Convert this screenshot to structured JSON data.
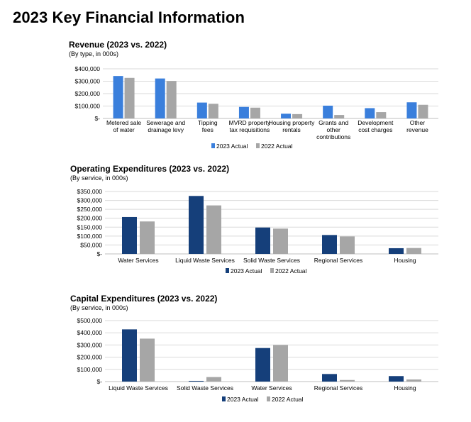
{
  "page_title": "2023 Key Financial Information",
  "colors": {
    "actual_2023_revenue": "#3a7fdc",
    "actual_2023_expense": "#153f7a",
    "actual_2022": "#a6a6a6",
    "grid": "#d9d9d9"
  },
  "chart_data": [
    {
      "type": "bar",
      "title": "Revenue (2023 vs. 2022)",
      "subtitle": "(By type, in 000s)",
      "categories": [
        [
          "Metered sale",
          "of water"
        ],
        [
          "Sewerage and",
          "drainage levy"
        ],
        [
          "Tipping",
          "fees"
        ],
        [
          "MVRD property",
          "tax requisitions"
        ],
        [
          "Housing property",
          "rentals"
        ],
        [
          "Grants and",
          "other",
          "contributions"
        ],
        [
          "Development",
          "cost charges"
        ],
        [
          "Other",
          "revenue"
        ]
      ],
      "series": [
        {
          "name": "2023 Actual",
          "values": [
            342000,
            322000,
            128000,
            93000,
            38000,
            103000,
            83000,
            130000
          ]
        },
        {
          "name": "2022 Actual",
          "values": [
            327000,
            302000,
            118000,
            87000,
            35000,
            28000,
            51000,
            110000
          ]
        }
      ],
      "ylim": [
        0,
        400000
      ],
      "yticks": [
        0,
        100000,
        200000,
        300000,
        400000
      ],
      "ytick_labels": [
        "$-",
        "$100,000",
        "$200,000",
        "$300,000",
        "$400,000"
      ],
      "legend": "bottom",
      "grid": true
    },
    {
      "type": "bar",
      "title": "Operating Expenditures (2023 vs. 2022)",
      "subtitle": "(By service, in 000s)",
      "categories": [
        [
          "Water Services"
        ],
        [
          "Liquid Waste Services"
        ],
        [
          "Solid Waste Services"
        ],
        [
          "Regional Services"
        ],
        [
          "Housing"
        ]
      ],
      "series": [
        {
          "name": "2023 Actual",
          "values": [
            207000,
            325000,
            148000,
            106000,
            32000
          ]
        },
        {
          "name": "2022 Actual",
          "values": [
            182000,
            272000,
            142000,
            98000,
            33000
          ]
        }
      ],
      "ylim": [
        0,
        350000
      ],
      "yticks": [
        0,
        50000,
        100000,
        150000,
        200000,
        250000,
        300000,
        350000
      ],
      "ytick_labels": [
        "$-",
        "$50,000",
        "$100,000",
        "$150,000",
        "$200,000",
        "$250,000",
        "$300,000",
        "$350,000"
      ],
      "legend": "bottom",
      "grid": true
    },
    {
      "type": "bar",
      "title": "Capital Expenditures (2023 vs. 2022)",
      "subtitle": "(By service, in 000s)",
      "categories": [
        [
          "Liquid Waste Services"
        ],
        [
          "Solid Waste Services"
        ],
        [
          "Water Services"
        ],
        [
          "Regional Services"
        ],
        [
          "Housing"
        ]
      ],
      "series": [
        {
          "name": "2023 Actual",
          "values": [
            428000,
            6000,
            275000,
            62000,
            45000
          ]
        },
        {
          "name": "2022 Actual",
          "values": [
            352000,
            37000,
            300000,
            13000,
            17000
          ]
        }
      ],
      "ylim": [
        0,
        500000
      ],
      "yticks": [
        0,
        100000,
        200000,
        300000,
        400000,
        500000
      ],
      "ytick_labels": [
        "$-",
        "$100,000",
        "$200,000",
        "$300,000",
        "$400,000",
        "$500,000"
      ],
      "legend": "bottom",
      "grid": true
    }
  ]
}
